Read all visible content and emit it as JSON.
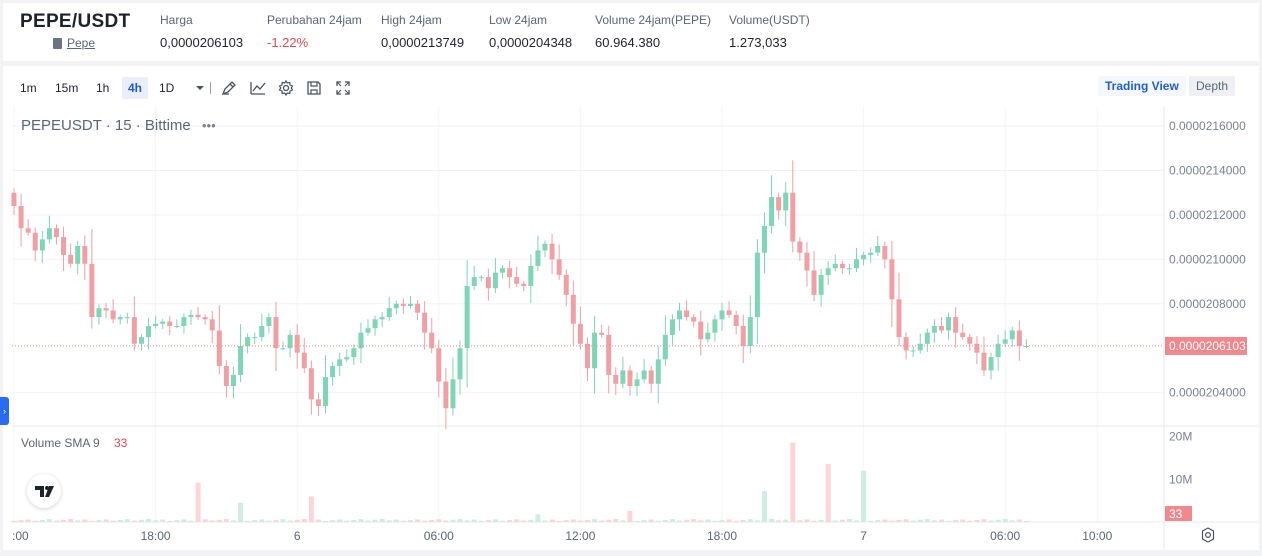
{
  "header": {
    "pair": "PEPE/USDT",
    "coin_name": "Pepe",
    "stats": [
      {
        "label": "Harga",
        "value": "0,0000206103",
        "negative": false
      },
      {
        "label": "Perubahan 24jam",
        "value": "-1.22%",
        "negative": true
      },
      {
        "label": "High 24jam",
        "value": "0,0000213749",
        "negative": false
      },
      {
        "label": "Low 24jam",
        "value": "0,0000204348",
        "negative": false
      },
      {
        "label": "Volume 24jam(PEPE)",
        "value": "60.964.380",
        "negative": false
      },
      {
        "label": "Volume(USDT)",
        "value": "1.273,033",
        "negative": false
      }
    ]
  },
  "toolbar": {
    "timeframes": [
      "1m",
      "15m",
      "1h",
      "4h",
      "1D"
    ],
    "active_timeframe": "4h",
    "icons": [
      "draw-icon",
      "indicator-icon",
      "settings-icon",
      "save-icon",
      "fullscreen-icon"
    ],
    "view_buttons": [
      {
        "label": "Trading View",
        "active": true
      },
      {
        "label": "Depth",
        "active": false
      }
    ]
  },
  "colors": {
    "up": "#7fd6b6",
    "down": "#f0a0a4",
    "price_tag": "#f0888d",
    "accent": "#1f5fcf"
  },
  "chart_data": {
    "type": "candlestick",
    "title": "PEPEUSDT · 15 · Bittime",
    "more_label": "•••",
    "current_price": 2.06103e-05,
    "current_price_label": "0.0000206103",
    "y_ticks": [
      {
        "value": 2.16e-05,
        "label": "0.0000216000"
      },
      {
        "value": 2.14e-05,
        "label": "0.0000214000"
      },
      {
        "value": 2.12e-05,
        "label": "0.0000212000"
      },
      {
        "value": 2.1e-05,
        "label": "0.0000210000"
      },
      {
        "value": 2.08e-05,
        "label": "0.0000208000"
      },
      {
        "value": 2.04e-05,
        "label": "0.0000204000"
      }
    ],
    "ylim": [
      2.025e-05,
      2.169e-05
    ],
    "x_ticks": [
      {
        "i": 0,
        "label": ":00"
      },
      {
        "i": 20,
        "label": "18:00"
      },
      {
        "i": 40,
        "label": "6"
      },
      {
        "i": 60,
        "label": "06:00"
      },
      {
        "i": 80,
        "label": "12:00"
      },
      {
        "i": 100,
        "label": "18:00"
      },
      {
        "i": 120,
        "label": "7"
      },
      {
        "i": 140,
        "label": "06:00"
      },
      {
        "i": 153,
        "label": "10:00"
      }
    ],
    "closes": [
      21.24,
      21.14,
      21.12,
      21.04,
      21.09,
      21.14,
      21.1,
      21.02,
      20.98,
      21.06,
      20.98,
      20.74,
      20.78,
      20.77,
      20.73,
      20.74,
      20.74,
      20.62,
      20.65,
      20.7,
      20.71,
      20.72,
      20.7,
      20.7,
      20.74,
      20.75,
      20.74,
      20.73,
      20.68,
      20.52,
      20.43,
      20.48,
      20.61,
      20.65,
      20.65,
      20.7,
      20.74,
      20.6,
      20.6,
      20.66,
      20.58,
      20.51,
      20.37,
      20.34,
      20.47,
      20.52,
      20.55,
      20.56,
      20.6,
      20.67,
      20.69,
      20.73,
      20.74,
      20.78,
      20.8,
      20.79,
      20.8,
      20.76,
      20.67,
      20.6,
      20.45,
      20.33,
      20.46,
      20.6,
      20.88,
      20.92,
      20.92,
      20.87,
      20.94,
      20.96,
      20.92,
      20.89,
      20.88,
      20.97,
      21.04,
      21.07,
      21.0,
      20.93,
      20.84,
      20.71,
      20.62,
      20.51,
      20.67,
      20.66,
      20.48,
      20.44,
      20.5,
      20.43,
      20.46,
      20.5,
      20.44,
      20.55,
      20.66,
      20.73,
      20.77,
      20.74,
      20.72,
      20.64,
      20.67,
      20.73,
      20.77,
      20.75,
      20.7,
      20.61,
      20.74,
      21.03,
      21.15,
      21.28,
      21.22,
      21.3,
      21.08,
      21.03,
      20.95,
      20.84,
      20.93,
      20.96,
      20.98,
      20.96,
      20.96,
      21.0,
      21.02,
      21.03,
      21.06,
      21.0,
      20.82,
      20.65,
      20.59,
      20.59,
      20.62,
      20.67,
      20.7,
      20.68,
      20.74,
      20.67,
      20.65,
      20.62,
      20.58,
      20.5,
      20.56,
      20.62,
      20.64,
      20.68,
      20.61,
      20.61
    ],
    "volume_indicator": {
      "label": "Volume SMA 9",
      "value": "33",
      "y_ticks": [
        {
          "value": 20,
          "label": "20M"
        },
        {
          "value": 10,
          "label": "10M"
        }
      ],
      "current_label": "33",
      "spikes": [
        {
          "i": 26,
          "v": 9.2,
          "up": false
        },
        {
          "i": 32,
          "v": 4.5,
          "up": true
        },
        {
          "i": 42,
          "v": 6.0,
          "up": false
        },
        {
          "i": 74,
          "v": 1.8,
          "up": true
        },
        {
          "i": 87,
          "v": 2.6,
          "up": false
        },
        {
          "i": 106,
          "v": 7.2,
          "up": true
        },
        {
          "i": 110,
          "v": 18.6,
          "up": false
        },
        {
          "i": 115,
          "v": 13.6,
          "up": false
        },
        {
          "i": 120,
          "v": 12.0,
          "up": true
        }
      ],
      "ylim": [
        0,
        22
      ]
    }
  }
}
